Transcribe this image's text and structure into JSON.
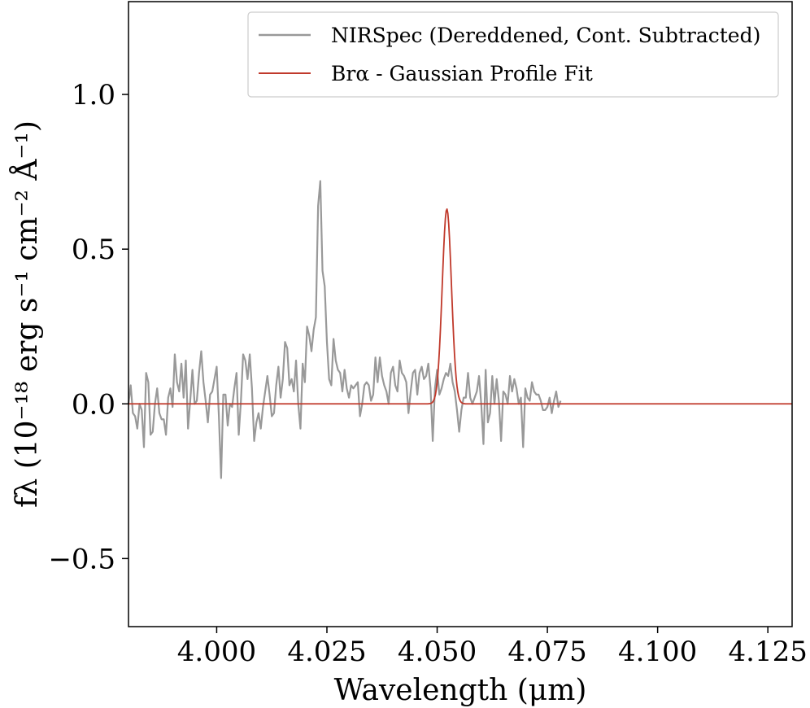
{
  "chart_data": {
    "type": "line",
    "title": "",
    "xlabel": "Wavelength (μm)",
    "ylabel": "fλ (10⁻¹⁸ erg s⁻¹ cm⁻² Å⁻¹)",
    "xlim": [
      3.98,
      4.1305
    ],
    "ylim": [
      -0.72,
      1.3
    ],
    "x_ticks": [
      4.0,
      4.025,
      4.05,
      4.075,
      4.1,
      4.125
    ],
    "x_tick_labels": [
      "4.000",
      "4.025",
      "4.050",
      "4.075",
      "4.100",
      "4.125"
    ],
    "y_ticks": [
      -0.5,
      0.0,
      0.5,
      1.0
    ],
    "y_tick_labels": [
      "−0.5",
      "0.0",
      "0.5",
      "1.0"
    ],
    "grid": false,
    "legend_position": "top-right",
    "series": [
      {
        "name": "NIRSpec (Dereddened, Cont. Subtracted)",
        "color": "#999999",
        "x_start": 3.98,
        "x_step": 0.0005,
        "values": [
          0.0,
          0.06,
          -0.03,
          -0.04,
          -0.08,
          0.0,
          -0.02,
          -0.14,
          0.1,
          0.07,
          -0.1,
          -0.09,
          0.0,
          0.05,
          -0.03,
          -0.05,
          -0.05,
          -0.1,
          0.02,
          0.05,
          -0.01,
          0.16,
          0.07,
          0.04,
          0.13,
          0.02,
          0.14,
          -0.08,
          0.01,
          0.11,
          0.0,
          0.01,
          0.1,
          0.17,
          0.07,
          0.01,
          -0.06,
          0.03,
          0.04,
          0.08,
          0.12,
          -0.04,
          -0.24,
          0.03,
          0.03,
          -0.07,
          0.0,
          -0.01,
          0.05,
          0.1,
          -0.1,
          0.01,
          0.16,
          0.14,
          0.08,
          0.16,
          0.05,
          -0.12,
          -0.06,
          -0.03,
          -0.08,
          -0.01,
          0.04,
          0.09,
          0.03,
          -0.04,
          -0.03,
          0.06,
          0.12,
          0.02,
          0.08,
          0.2,
          0.18,
          0.06,
          0.08,
          0.04,
          0.14,
          0.0,
          -0.08,
          0.13,
          0.07,
          0.25,
          0.22,
          0.17,
          0.24,
          0.28,
          0.64,
          0.72,
          0.43,
          0.38,
          0.2,
          0.08,
          0.06,
          0.21,
          0.14,
          0.11,
          0.1,
          0.04,
          0.11,
          0.05,
          0.02,
          0.06,
          0.05,
          0.06,
          0.07,
          -0.04,
          0.0,
          0.06,
          0.07,
          0.06,
          0.01,
          0.03,
          0.15,
          0.07,
          0.15,
          0.09,
          0.06,
          0.04,
          0.0,
          0.1,
          0.12,
          0.06,
          0.04,
          0.14,
          0.1,
          0.09,
          0.07,
          -0.03,
          0.04,
          0.1,
          0.11,
          0.03,
          0.1,
          0.12,
          0.08,
          0.09,
          0.13,
          0.05,
          -0.12,
          0.05,
          0.11,
          0.03,
          0.05,
          0.08,
          0.1,
          0.09,
          0.13,
          0.07,
          0.04,
          -0.02,
          -0.09,
          -0.02,
          0.02,
          0.02,
          0.1,
          0.02,
          0.0,
          0.02,
          0.04,
          0.09,
          0.0,
          -0.13,
          0.11,
          -0.06,
          -0.03,
          0.09,
          0.0,
          0.08,
          0.01,
          -0.12,
          0.04,
          0.03,
          0.0,
          0.09,
          0.04,
          0.08,
          0.05,
          0.0,
          0.02,
          -0.14,
          0.05,
          0.02,
          0.01,
          0.07,
          0.04,
          0.03,
          0.03,
          0.01,
          -0.02,
          -0.02,
          -0.01,
          0.02,
          -0.03,
          0.01,
          0.04,
          -0.01,
          0.01
        ]
      },
      {
        "name": "Brα - Gaussian Profile Fit",
        "color": "#c0392b",
        "model": "gaussian",
        "amplitude": 0.63,
        "center": 4.0522,
        "sigma": 0.00105,
        "baseline": 0.0
      }
    ]
  }
}
